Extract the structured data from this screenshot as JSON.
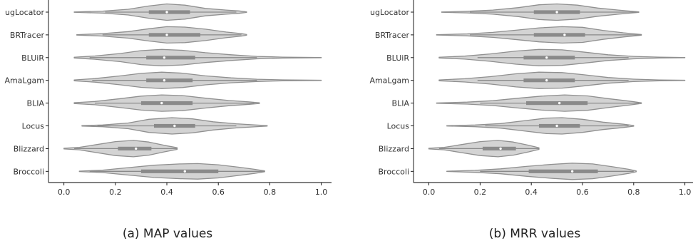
{
  "chart_data": [
    {
      "type": "violin",
      "caption": "(a) MAP values",
      "tool_labels": [
        "ugLocator",
        "BRTracer",
        "BLUiR",
        "AmaLgam",
        "BLIA",
        "Locus",
        "Blizzard",
        "Broccoli"
      ],
      "xlim": [
        -0.06,
        1.04
      ],
      "x_ticks": [
        0.0,
        0.2,
        0.4,
        0.6,
        0.8,
        1.0
      ],
      "x_tick_labels": [
        "0.0",
        "0.2",
        "0.4",
        "0.6",
        "0.8",
        "1.0"
      ],
      "grid": false,
      "colors": {
        "violin_fill": "#d3d3d3",
        "violin_edge": "#909090",
        "box": "#8a8a8a",
        "median": "#ffffff"
      },
      "series": [
        {
          "min": 0.04,
          "q1": 0.33,
          "median": 0.4,
          "q3": 0.49,
          "max": 0.71,
          "whisker_lo": 0.16,
          "whisker_hi": 0.67,
          "density": [
            [
              0.04,
              0.02
            ],
            [
              0.15,
              0.12
            ],
            [
              0.25,
              0.35
            ],
            [
              0.33,
              0.75
            ],
            [
              0.4,
              1.0
            ],
            [
              0.47,
              0.85
            ],
            [
              0.55,
              0.45
            ],
            [
              0.63,
              0.25
            ],
            [
              0.68,
              0.15
            ],
            [
              0.71,
              0.03
            ]
          ]
        },
        {
          "min": 0.05,
          "q1": 0.33,
          "median": 0.4,
          "q3": 0.53,
          "max": 0.71,
          "whisker_lo": 0.15,
          "whisker_hi": 0.69,
          "density": [
            [
              0.05,
              0.03
            ],
            [
              0.15,
              0.15
            ],
            [
              0.25,
              0.4
            ],
            [
              0.33,
              0.75
            ],
            [
              0.4,
              1.0
            ],
            [
              0.47,
              0.95
            ],
            [
              0.55,
              0.7
            ],
            [
              0.63,
              0.35
            ],
            [
              0.69,
              0.15
            ],
            [
              0.71,
              0.04
            ]
          ]
        },
        {
          "min": 0.04,
          "q1": 0.32,
          "median": 0.39,
          "q3": 0.51,
          "max": 1.0,
          "whisker_lo": 0.1,
          "whisker_hi": 0.75,
          "density": [
            [
              0.04,
              0.04
            ],
            [
              0.12,
              0.2
            ],
            [
              0.22,
              0.5
            ],
            [
              0.3,
              0.85
            ],
            [
              0.38,
              1.0
            ],
            [
              0.46,
              0.9
            ],
            [
              0.55,
              0.6
            ],
            [
              0.65,
              0.35
            ],
            [
              0.75,
              0.15
            ],
            [
              0.85,
              0.06
            ],
            [
              1.0,
              0.02
            ]
          ]
        },
        {
          "min": 0.04,
          "q1": 0.32,
          "median": 0.39,
          "q3": 0.5,
          "max": 1.0,
          "whisker_lo": 0.11,
          "whisker_hi": 0.75,
          "density": [
            [
              0.04,
              0.05
            ],
            [
              0.12,
              0.22
            ],
            [
              0.22,
              0.55
            ],
            [
              0.3,
              0.85
            ],
            [
              0.38,
              1.0
            ],
            [
              0.46,
              0.88
            ],
            [
              0.55,
              0.55
            ],
            [
              0.65,
              0.3
            ],
            [
              0.75,
              0.14
            ],
            [
              0.85,
              0.06
            ],
            [
              1.0,
              0.02
            ]
          ]
        },
        {
          "min": 0.04,
          "q1": 0.3,
          "median": 0.38,
          "q3": 0.5,
          "max": 0.76,
          "whisker_lo": 0.12,
          "whisker_hi": 0.74,
          "density": [
            [
              0.04,
              0.05
            ],
            [
              0.12,
              0.2
            ],
            [
              0.22,
              0.55
            ],
            [
              0.3,
              0.85
            ],
            [
              0.38,
              1.0
            ],
            [
              0.46,
              0.92
            ],
            [
              0.55,
              0.6
            ],
            [
              0.64,
              0.32
            ],
            [
              0.72,
              0.15
            ],
            [
              0.76,
              0.04
            ]
          ]
        },
        {
          "min": 0.07,
          "q1": 0.35,
          "median": 0.43,
          "q3": 0.51,
          "max": 0.79,
          "whisker_lo": 0.13,
          "whisker_hi": 0.67,
          "density": [
            [
              0.07,
              0.03
            ],
            [
              0.15,
              0.1
            ],
            [
              0.25,
              0.35
            ],
            [
              0.33,
              0.8
            ],
            [
              0.42,
              1.0
            ],
            [
              0.5,
              0.85
            ],
            [
              0.58,
              0.5
            ],
            [
              0.67,
              0.25
            ],
            [
              0.74,
              0.12
            ],
            [
              0.79,
              0.03
            ]
          ]
        },
        {
          "min": 0.0,
          "q1": 0.21,
          "median": 0.28,
          "q3": 0.34,
          "max": 0.44,
          "whisker_lo": 0.04,
          "whisker_hi": 0.44,
          "density": [
            [
              0.0,
              0.04
            ],
            [
              0.06,
              0.15
            ],
            [
              0.12,
              0.45
            ],
            [
              0.2,
              0.85
            ],
            [
              0.27,
              1.0
            ],
            [
              0.33,
              0.8
            ],
            [
              0.39,
              0.4
            ],
            [
              0.44,
              0.1
            ]
          ]
        },
        {
          "min": 0.06,
          "q1": 0.3,
          "median": 0.47,
          "q3": 0.6,
          "max": 0.78,
          "whisker_lo": 0.1,
          "whisker_hi": 0.78,
          "density": [
            [
              0.06,
              0.03
            ],
            [
              0.15,
              0.15
            ],
            [
              0.25,
              0.45
            ],
            [
              0.35,
              0.75
            ],
            [
              0.45,
              0.9
            ],
            [
              0.52,
              0.95
            ],
            [
              0.6,
              0.8
            ],
            [
              0.68,
              0.5
            ],
            [
              0.74,
              0.25
            ],
            [
              0.78,
              0.05
            ]
          ]
        }
      ]
    },
    {
      "type": "violin",
      "caption": "(b) MRR values",
      "tool_labels": [
        "ugLocator",
        "BRTracer",
        "BLUiR",
        "AmaLgam",
        "BLIA",
        "Locus",
        "Blizzard",
        "Broccoli"
      ],
      "xlim": [
        -0.06,
        1.04
      ],
      "x_ticks": [
        0.0,
        0.2,
        0.4,
        0.6,
        0.8,
        1.0
      ],
      "x_tick_labels": [
        "0.0",
        "0.2",
        "0.4",
        "0.6",
        "0.8",
        "1.0"
      ],
      "grid": false,
      "colors": {
        "violin_fill": "#d3d3d3",
        "violin_edge": "#909090",
        "box": "#8a8a8a",
        "median": "#ffffff"
      },
      "series": [
        {
          "min": 0.05,
          "q1": 0.41,
          "median": 0.5,
          "q3": 0.59,
          "max": 0.82,
          "whisker_lo": 0.16,
          "whisker_hi": 0.81,
          "density": [
            [
              0.05,
              0.02
            ],
            [
              0.15,
              0.1
            ],
            [
              0.25,
              0.25
            ],
            [
              0.35,
              0.55
            ],
            [
              0.43,
              0.9
            ],
            [
              0.5,
              1.0
            ],
            [
              0.58,
              0.85
            ],
            [
              0.66,
              0.5
            ],
            [
              0.74,
              0.25
            ],
            [
              0.82,
              0.03
            ]
          ]
        },
        {
          "min": 0.03,
          "q1": 0.41,
          "median": 0.53,
          "q3": 0.61,
          "max": 0.83,
          "whisker_lo": 0.16,
          "whisker_hi": 0.83,
          "density": [
            [
              0.03,
              0.02
            ],
            [
              0.15,
              0.12
            ],
            [
              0.25,
              0.3
            ],
            [
              0.35,
              0.6
            ],
            [
              0.43,
              0.85
            ],
            [
              0.52,
              1.0
            ],
            [
              0.6,
              0.92
            ],
            [
              0.68,
              0.55
            ],
            [
              0.76,
              0.25
            ],
            [
              0.83,
              0.04
            ]
          ]
        },
        {
          "min": 0.04,
          "q1": 0.37,
          "median": 0.46,
          "q3": 0.57,
          "max": 1.0,
          "whisker_lo": 0.19,
          "whisker_hi": 0.78,
          "density": [
            [
              0.04,
              0.04
            ],
            [
              0.14,
              0.18
            ],
            [
              0.24,
              0.45
            ],
            [
              0.34,
              0.8
            ],
            [
              0.43,
              1.0
            ],
            [
              0.52,
              0.95
            ],
            [
              0.6,
              0.7
            ],
            [
              0.7,
              0.35
            ],
            [
              0.8,
              0.15
            ],
            [
              0.9,
              0.05
            ],
            [
              1.0,
              0.02
            ]
          ]
        },
        {
          "min": 0.04,
          "q1": 0.37,
          "median": 0.46,
          "q3": 0.57,
          "max": 1.0,
          "whisker_lo": 0.19,
          "whisker_hi": 0.78,
          "density": [
            [
              0.04,
              0.05
            ],
            [
              0.14,
              0.2
            ],
            [
              0.24,
              0.45
            ],
            [
              0.34,
              0.8
            ],
            [
              0.43,
              1.0
            ],
            [
              0.52,
              0.95
            ],
            [
              0.6,
              0.7
            ],
            [
              0.7,
              0.35
            ],
            [
              0.8,
              0.15
            ],
            [
              0.9,
              0.05
            ],
            [
              1.0,
              0.02
            ]
          ]
        },
        {
          "min": 0.03,
          "q1": 0.38,
          "median": 0.51,
          "q3": 0.62,
          "max": 0.83,
          "whisker_lo": 0.2,
          "whisker_hi": 0.82,
          "density": [
            [
              0.03,
              0.02
            ],
            [
              0.15,
              0.12
            ],
            [
              0.25,
              0.3
            ],
            [
              0.35,
              0.6
            ],
            [
              0.44,
              0.85
            ],
            [
              0.53,
              1.0
            ],
            [
              0.62,
              0.88
            ],
            [
              0.7,
              0.55
            ],
            [
              0.78,
              0.25
            ],
            [
              0.83,
              0.04
            ]
          ]
        },
        {
          "min": 0.07,
          "q1": 0.43,
          "median": 0.5,
          "q3": 0.59,
          "max": 0.8,
          "whisker_lo": 0.22,
          "whisker_hi": 0.78,
          "density": [
            [
              0.07,
              0.02
            ],
            [
              0.18,
              0.1
            ],
            [
              0.28,
              0.28
            ],
            [
              0.38,
              0.65
            ],
            [
              0.46,
              0.95
            ],
            [
              0.52,
              1.0
            ],
            [
              0.6,
              0.8
            ],
            [
              0.68,
              0.45
            ],
            [
              0.76,
              0.2
            ],
            [
              0.8,
              0.04
            ]
          ]
        },
        {
          "min": 0.0,
          "q1": 0.21,
          "median": 0.28,
          "q3": 0.34,
          "max": 0.43,
          "whisker_lo": 0.04,
          "whisker_hi": 0.43,
          "density": [
            [
              0.0,
              0.04
            ],
            [
              0.06,
              0.15
            ],
            [
              0.12,
              0.45
            ],
            [
              0.2,
              0.85
            ],
            [
              0.27,
              1.0
            ],
            [
              0.33,
              0.8
            ],
            [
              0.39,
              0.4
            ],
            [
              0.43,
              0.1
            ]
          ]
        },
        {
          "min": 0.07,
          "q1": 0.39,
          "median": 0.56,
          "q3": 0.66,
          "max": 0.81,
          "whisker_lo": 0.2,
          "whisker_hi": 0.8,
          "density": [
            [
              0.07,
              0.02
            ],
            [
              0.18,
              0.12
            ],
            [
              0.28,
              0.3
            ],
            [
              0.38,
              0.6
            ],
            [
              0.48,
              0.85
            ],
            [
              0.56,
              1.0
            ],
            [
              0.64,
              0.9
            ],
            [
              0.72,
              0.55
            ],
            [
              0.78,
              0.25
            ],
            [
              0.81,
              0.05
            ]
          ]
        }
      ]
    }
  ]
}
